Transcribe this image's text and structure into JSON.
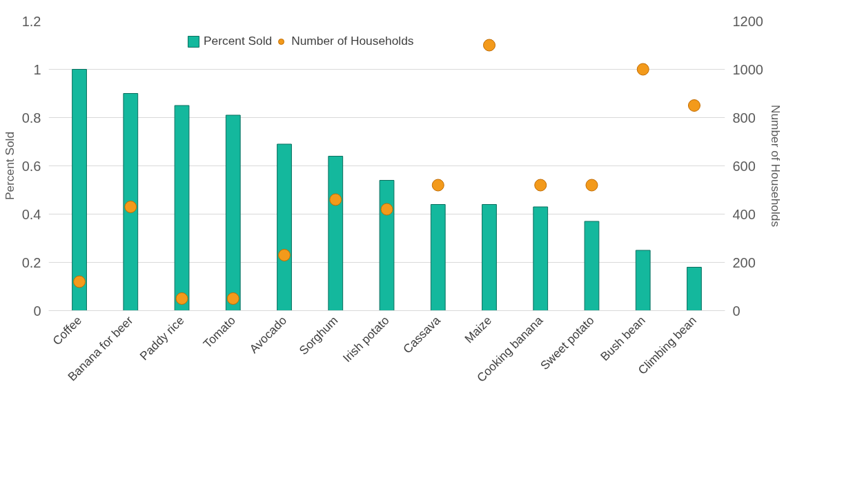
{
  "chart_data": {
    "type": "bar",
    "categories": [
      "Coffee",
      "Banana for beer",
      "Paddy rice",
      "Tomato",
      "Avocado",
      "Sorghum",
      "Irish potato",
      "Cassava",
      "Maize",
      "Cooking banana",
      "Sweet potato",
      "Bush bean",
      "Climbing bean"
    ],
    "series": [
      {
        "name": "Percent Sold",
        "color": "#14b89d",
        "values": [
          1.0,
          0.9,
          0.85,
          0.81,
          0.69,
          0.64,
          0.54,
          0.44,
          0.44,
          0.43,
          0.37,
          0.25,
          0.18
        ]
      },
      {
        "name": "Number of Households",
        "type": "scatter",
        "axis": "y2",
        "color": "#f39a1b",
        "values": [
          120,
          430,
          50,
          50,
          230,
          460,
          420,
          520,
          1100,
          520,
          520,
          1000,
          850
        ]
      }
    ],
    "ylabel": "Percent Sold",
    "y2label": "Number of Households",
    "ylim": [
      0,
      1.2
    ],
    "yticks": [
      0,
      0.2,
      0.4,
      0.6,
      0.8,
      1,
      1.2
    ],
    "y2lim": [
      0,
      1200
    ],
    "y2ticks": [
      0,
      200,
      400,
      600,
      800,
      1000,
      1200
    ],
    "grid": "y",
    "legend": "top",
    "marker": "circle"
  }
}
